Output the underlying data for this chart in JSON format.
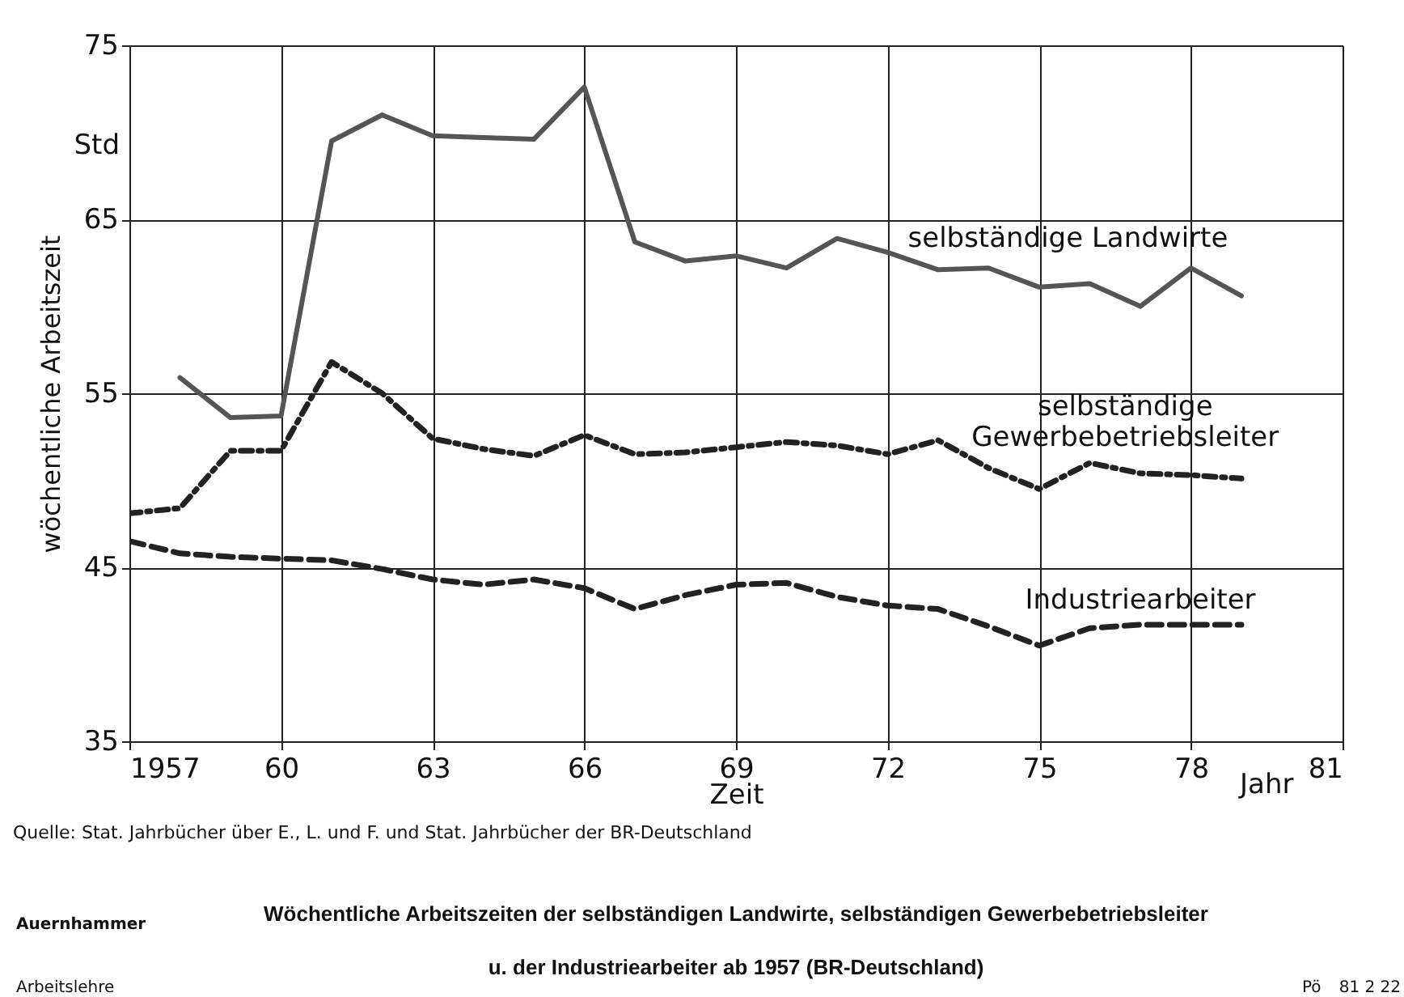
{
  "chart_data": {
    "type": "line",
    "title": "Wöchentliche Arbeitszeiten der selbständigen Landwirte, selbständigen Gewerbebetriebsleiter u. der Industriearbeiter ab 1957 (BR-Deutschland)",
    "xlabel": "Zeit",
    "ylabel": "wöchentliche Arbeitszeit",
    "x": [
      1957,
      1958,
      1959,
      1960,
      1961,
      1962,
      1963,
      1964,
      1965,
      1966,
      1967,
      1968,
      1969,
      1970,
      1971,
      1972,
      1973,
      1974,
      1975,
      1976,
      1977,
      1978,
      1979
    ],
    "series": [
      {
        "name": "selbständige Landwirte",
        "color": "#555555",
        "line_style": "solid",
        "values": [
          null,
          55.9,
          53.6,
          53.7,
          69.5,
          71.0,
          69.8,
          69.7,
          69.6,
          72.6,
          63.7,
          62.6,
          62.9,
          62.2,
          63.9,
          63.1,
          62.1,
          62.2,
          61.1,
          61.3,
          60.0,
          62.2,
          60.6
        ]
      },
      {
        "name": "selbständige Gewerbebetriebsleiter",
        "color": "#222222",
        "line_style": "dotted",
        "values": [
          48.1,
          48.4,
          51.7,
          51.7,
          56.8,
          55.0,
          52.4,
          51.8,
          51.4,
          52.6,
          51.5,
          51.6,
          51.9,
          52.2,
          52.0,
          51.5,
          52.3,
          50.7,
          49.5,
          51.0,
          50.4,
          50.3,
          50.1
        ]
      },
      {
        "name": "Industriearbeiter",
        "color": "#222222",
        "line_style": "dashed",
        "values": [
          46.5,
          45.8,
          45.6,
          45.5,
          45.4,
          44.9,
          44.3,
          44.0,
          44.3,
          43.8,
          42.6,
          43.4,
          44.0,
          44.1,
          43.3,
          42.8,
          42.6,
          41.6,
          40.5,
          41.5,
          41.7,
          41.7,
          41.7
        ]
      }
    ],
    "xlim": [
      1957,
      1981
    ],
    "xticks": [
      {
        "value": 1957,
        "label": "1957"
      },
      {
        "value": 1960,
        "label": "60"
      },
      {
        "value": 1963,
        "label": "63"
      },
      {
        "value": 1966,
        "label": "66"
      },
      {
        "value": 1969,
        "label": "69"
      },
      {
        "value": 1972,
        "label": "72"
      },
      {
        "value": 1975,
        "label": "75"
      },
      {
        "value": 1978,
        "label": "78"
      },
      {
        "value": 1981,
        "label": "81"
      }
    ],
    "ylim": [
      35,
      75
    ],
    "yticks": [
      35,
      45,
      55,
      65,
      75
    ],
    "grid": true,
    "annotations": [
      "Std",
      "Jahr",
      "Quelle: Stat. Jahrbücher über E., L. und F. und Stat. Jahrbücher der BR-Deutschland",
      "Auernhammer",
      "Arbeitslehre",
      "Pö",
      "81 2 22"
    ]
  }
}
